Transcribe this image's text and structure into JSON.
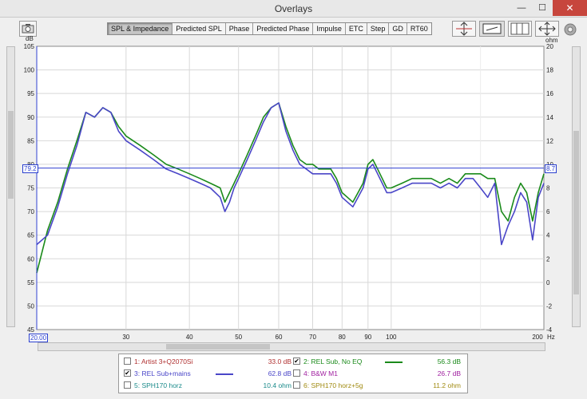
{
  "window": {
    "title": "Overlays",
    "minimize": "—",
    "maximize": "☐",
    "close": "✕"
  },
  "tabs": [
    "SPL & Impedance",
    "Predicted SPL",
    "Phase",
    "Predicted Phase",
    "Impulse",
    "ETC",
    "Step",
    "GD",
    "RT60"
  ],
  "active_tab": 0,
  "axis": {
    "left_unit": "dB",
    "right_unit": "ohm",
    "x_unit": "Hz",
    "left_ticks": [
      "105",
      "100",
      "95",
      "90",
      "85",
      "80",
      "75",
      "70",
      "65",
      "60",
      "55",
      "50",
      "45"
    ],
    "right_ticks": [
      "20",
      "18",
      "16",
      "14",
      "12",
      "10",
      "8",
      "6",
      "4",
      "2",
      "0",
      "-2",
      "-4"
    ],
    "x_ticks": [
      "30",
      "40",
      "50",
      "60",
      "70",
      "80",
      "90",
      "100",
      "200"
    ],
    "left_marker": "79.2",
    "right_marker": "8.7",
    "x_marker": "20.00"
  },
  "chart_data": {
    "type": "line",
    "xlabel": "Hz",
    "ylabel": "dB",
    "ylim": [
      45,
      105
    ],
    "y2lim": [
      -4,
      20
    ],
    "xlim": [
      20,
      200
    ],
    "x_scale": "log",
    "grid": true,
    "cursor_db": 79.2,
    "series": [
      {
        "name": "REL Sub, No EQ",
        "color": "#1a8a1a",
        "x": [
          20,
          21,
          22,
          23,
          24,
          25,
          26,
          27,
          28,
          29,
          30,
          32,
          34,
          36,
          38,
          40,
          42,
          44,
          46,
          47,
          48,
          49,
          50,
          52,
          54,
          56,
          58,
          60,
          62,
          64,
          66,
          68,
          70,
          72,
          74,
          76,
          78,
          80,
          82,
          84,
          86,
          88,
          90,
          92,
          94,
          96,
          98,
          100,
          105,
          110,
          115,
          120,
          125,
          130,
          135,
          140,
          145,
          150,
          155,
          160,
          165,
          170,
          175,
          180,
          185,
          190,
          195,
          200
        ],
        "y": [
          57,
          66,
          72,
          79,
          85,
          91,
          90,
          92,
          91,
          88,
          86,
          84,
          82,
          80,
          79,
          78,
          77,
          76,
          75,
          72,
          74,
          76,
          78,
          82,
          86,
          90,
          92,
          93,
          88,
          84,
          81,
          80,
          80,
          79,
          79,
          79,
          77,
          74,
          73,
          72,
          74,
          76,
          80,
          81,
          79,
          77,
          75,
          75,
          76,
          77,
          77,
          77,
          76,
          77,
          76,
          78,
          78,
          78,
          77,
          77,
          70,
          68,
          73,
          76,
          74,
          68,
          74,
          78
        ]
      },
      {
        "name": "REL Sub+mains",
        "color": "#4a46c8",
        "x": [
          20,
          21,
          22,
          23,
          24,
          25,
          26,
          27,
          28,
          29,
          30,
          32,
          34,
          36,
          38,
          40,
          42,
          44,
          46,
          47,
          48,
          49,
          50,
          52,
          54,
          56,
          58,
          60,
          62,
          64,
          66,
          68,
          70,
          72,
          74,
          76,
          78,
          80,
          82,
          84,
          86,
          88,
          90,
          92,
          94,
          96,
          98,
          100,
          105,
          110,
          115,
          120,
          125,
          130,
          135,
          140,
          145,
          150,
          155,
          160,
          165,
          170,
          175,
          180,
          185,
          190,
          195,
          200
        ],
        "y": [
          63,
          65,
          71,
          78,
          84,
          91,
          90,
          92,
          91,
          87,
          85,
          83,
          81,
          79,
          78,
          77,
          76,
          75,
          73,
          70,
          72,
          75,
          77,
          81,
          85,
          89,
          92,
          93,
          87,
          83,
          80,
          79,
          78,
          78,
          78,
          78,
          76,
          73,
          72,
          71,
          73,
          75,
          79,
          80,
          78,
          76,
          74,
          74,
          75,
          76,
          76,
          76,
          75,
          76,
          75,
          77,
          77,
          75,
          73,
          76,
          63,
          67,
          70,
          74,
          72,
          64,
          73,
          76
        ]
      }
    ]
  },
  "legend": {
    "items": [
      {
        "checked": false,
        "name": "1: Artist 3+Q2070Si",
        "value": "33.0 dB",
        "color": "#b03030",
        "line": false
      },
      {
        "checked": true,
        "name": "2: REL Sub, No EQ",
        "value": "56.3 dB",
        "color": "#1a8a1a",
        "line": true
      },
      {
        "checked": true,
        "name": "3: REL Sub+mains",
        "value": "62.8 dB",
        "color": "#4a46c8",
        "line": true
      },
      {
        "checked": false,
        "name": "4: B&W M1",
        "value": "26.7 dB",
        "color": "#a020a0",
        "line": false
      },
      {
        "checked": false,
        "name": "5: SPH170 horz",
        "value": "10.4 ohm",
        "color": "#1a8a8a",
        "line": false
      },
      {
        "checked": false,
        "name": "6: SPH170 horz+5g",
        "value": "11.2 ohm",
        "color": "#a08a10",
        "line": false
      }
    ]
  }
}
